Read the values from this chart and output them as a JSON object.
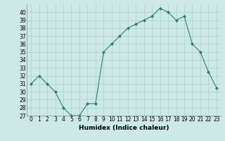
{
  "x": [
    0,
    1,
    2,
    3,
    4,
    5,
    6,
    7,
    8,
    9,
    10,
    11,
    12,
    13,
    14,
    15,
    16,
    17,
    18,
    19,
    20,
    21,
    22,
    23
  ],
  "y": [
    31,
    32,
    31,
    30,
    28,
    27,
    27,
    28.5,
    28.5,
    35,
    36,
    37,
    38,
    38.5,
    39,
    39.5,
    40.5,
    40,
    39,
    39.5,
    36,
    35,
    32.5,
    30.5
  ],
  "line_color": "#2e7d72",
  "marker": "D",
  "marker_size": 2,
  "bg_color": "#cce9e7",
  "grid_color": "#aacfcc",
  "xlabel": "Humidex (Indice chaleur)",
  "ylabel": "",
  "xlim": [
    -0.5,
    23.5
  ],
  "ylim": [
    27,
    41
  ],
  "yticks": [
    27,
    28,
    29,
    30,
    31,
    32,
    33,
    34,
    35,
    36,
    37,
    38,
    39,
    40
  ],
  "xtick_labels": [
    "0",
    "1",
    "2",
    "3",
    "4",
    "5",
    "6",
    "7",
    "8",
    "9",
    "10",
    "11",
    "12",
    "13",
    "14",
    "15",
    "16",
    "17",
    "18",
    "19",
    "20",
    "21",
    "22",
    "23"
  ],
  "tick_fontsize": 5.5,
  "label_fontsize": 6.5
}
